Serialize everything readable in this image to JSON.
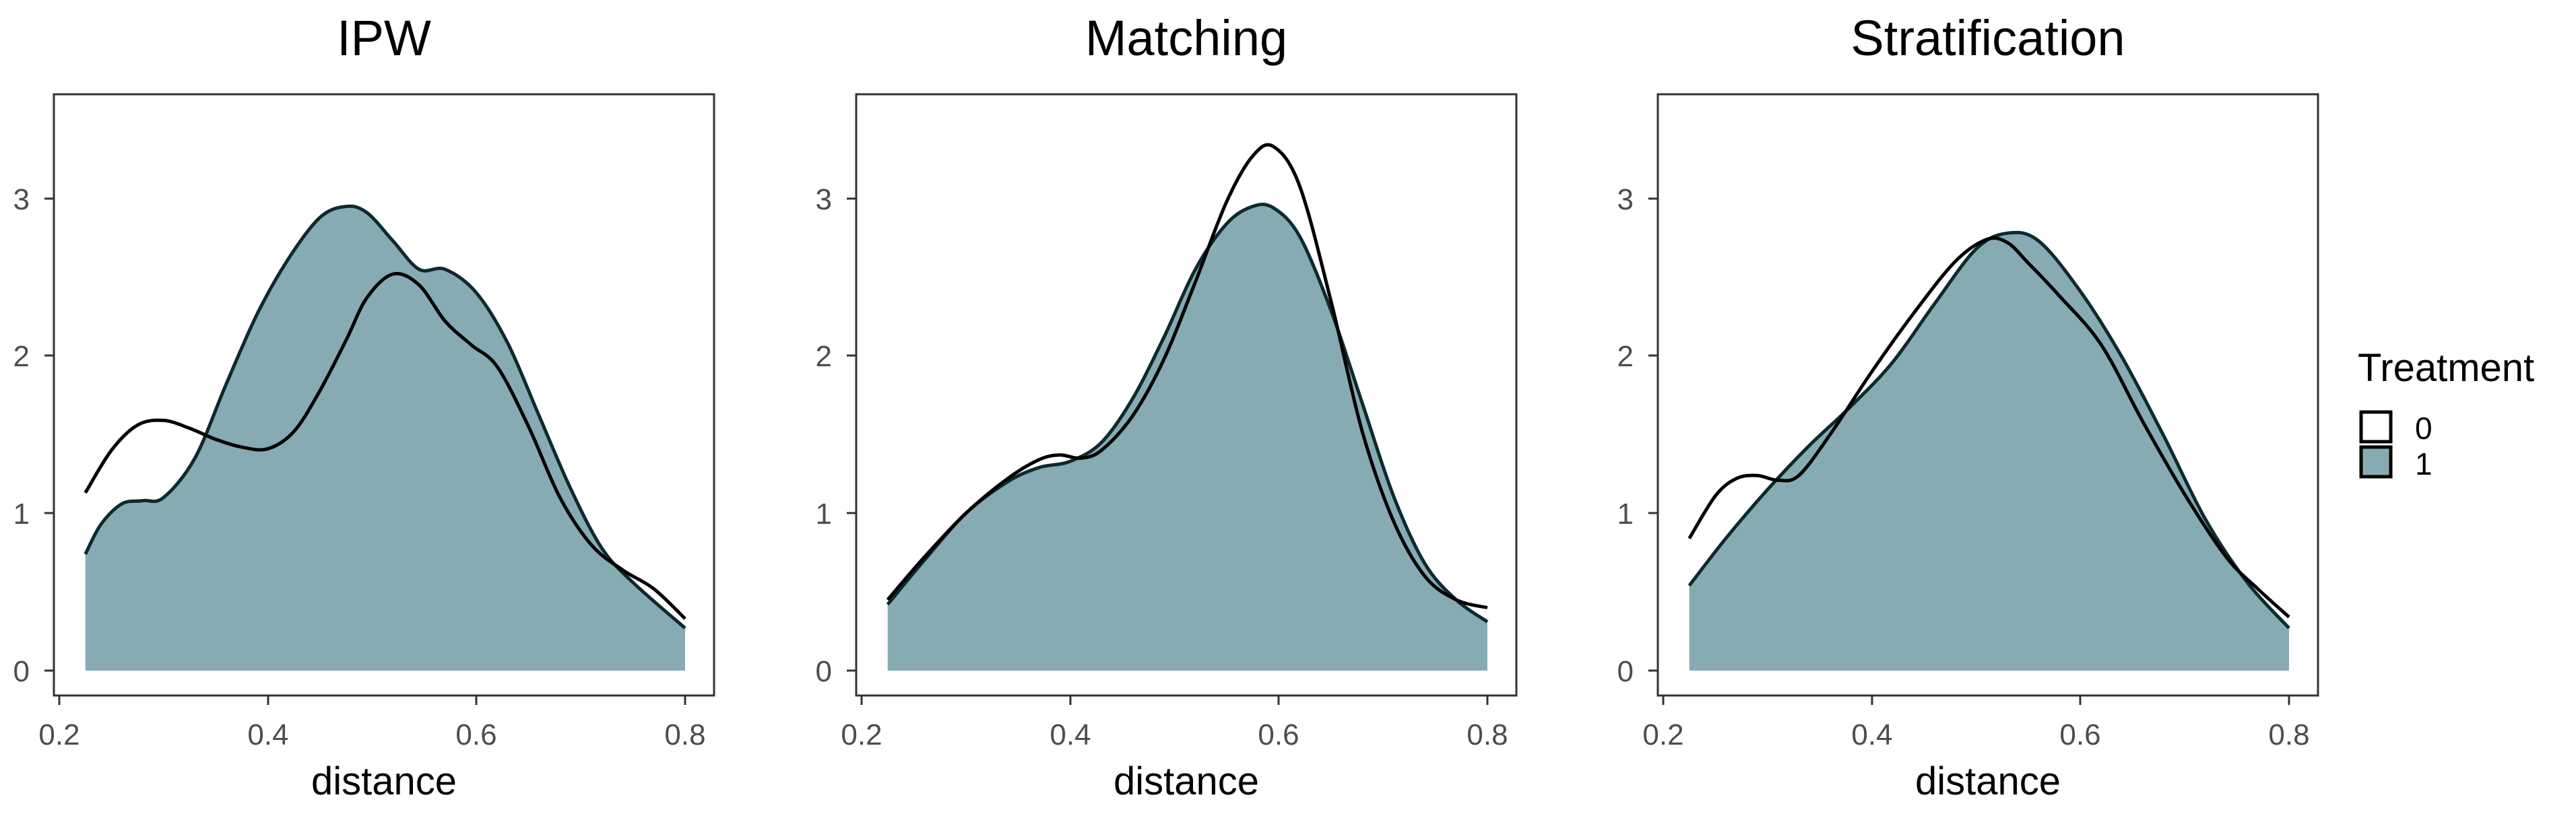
{
  "chart_data": [
    {
      "type": "area",
      "title": "IPW",
      "xlabel": "distance",
      "ylabel": "",
      "xlim": [
        0.2,
        0.8
      ],
      "ylim": [
        0,
        3.6
      ],
      "x_ticks": [
        "0.2",
        "0.4",
        "0.6",
        "0.8"
      ],
      "y_ticks": [
        "0",
        "1",
        "2",
        "3"
      ],
      "grid": false,
      "series": [
        {
          "name": "0",
          "fill": "none",
          "x": [
            0.225,
            0.25,
            0.275,
            0.3,
            0.325,
            0.35,
            0.375,
            0.4,
            0.425,
            0.45,
            0.475,
            0.495,
            0.52,
            0.545,
            0.57,
            0.595,
            0.62,
            0.65,
            0.68,
            0.71,
            0.74,
            0.77,
            0.8
          ],
          "y": [
            1.13,
            1.4,
            1.56,
            1.59,
            1.54,
            1.47,
            1.42,
            1.41,
            1.52,
            1.78,
            2.1,
            2.37,
            2.52,
            2.45,
            2.22,
            2.07,
            1.93,
            1.55,
            1.1,
            0.8,
            0.64,
            0.52,
            0.33
          ]
        },
        {
          "name": "1",
          "fill": "#87abb2",
          "x": [
            0.225,
            0.24,
            0.26,
            0.28,
            0.3,
            0.33,
            0.36,
            0.39,
            0.42,
            0.45,
            0.475,
            0.495,
            0.52,
            0.545,
            0.57,
            0.6,
            0.63,
            0.66,
            0.69,
            0.72,
            0.75,
            0.8
          ],
          "y": [
            0.74,
            0.93,
            1.06,
            1.08,
            1.1,
            1.35,
            1.82,
            2.27,
            2.62,
            2.88,
            2.95,
            2.91,
            2.73,
            2.55,
            2.55,
            2.4,
            2.08,
            1.62,
            1.16,
            0.78,
            0.56,
            0.27
          ]
        }
      ]
    },
    {
      "type": "area",
      "title": "Matching",
      "xlabel": "distance",
      "ylabel": "",
      "xlim": [
        0.2,
        0.8
      ],
      "ylim": [
        0,
        3.6
      ],
      "x_ticks": [
        "0.2",
        "0.4",
        "0.6",
        "0.8"
      ],
      "y_ticks": [
        "0",
        "1",
        "2",
        "3"
      ],
      "grid": false,
      "series": [
        {
          "name": "0",
          "fill": "none",
          "x": [
            0.225,
            0.26,
            0.3,
            0.34,
            0.37,
            0.39,
            0.41,
            0.43,
            0.46,
            0.49,
            0.52,
            0.55,
            0.575,
            0.595,
            0.62,
            0.65,
            0.68,
            0.71,
            0.74,
            0.77,
            0.8
          ],
          "y": [
            0.45,
            0.72,
            1.0,
            1.22,
            1.34,
            1.37,
            1.35,
            1.4,
            1.62,
            1.98,
            2.47,
            2.98,
            3.27,
            3.33,
            3.08,
            2.35,
            1.52,
            0.95,
            0.6,
            0.45,
            0.4
          ]
        },
        {
          "name": "1",
          "fill": "#87abb2",
          "x": [
            0.225,
            0.26,
            0.3,
            0.34,
            0.37,
            0.4,
            0.43,
            0.46,
            0.49,
            0.52,
            0.55,
            0.575,
            0.595,
            0.62,
            0.65,
            0.68,
            0.71,
            0.74,
            0.77,
            0.8
          ],
          "y": [
            0.42,
            0.7,
            1.0,
            1.2,
            1.29,
            1.33,
            1.45,
            1.73,
            2.12,
            2.55,
            2.84,
            2.95,
            2.94,
            2.76,
            2.29,
            1.7,
            1.11,
            0.68,
            0.45,
            0.31
          ]
        }
      ]
    },
    {
      "type": "area",
      "title": "Stratification",
      "xlabel": "distance",
      "ylabel": "",
      "xlim": [
        0.2,
        0.8
      ],
      "ylim": [
        0,
        3.6
      ],
      "x_ticks": [
        "0.2",
        "0.4",
        "0.6",
        "0.8"
      ],
      "y_ticks": [
        "0",
        "1",
        "2",
        "3"
      ],
      "grid": false,
      "series": [
        {
          "name": "0",
          "fill": "none",
          "x": [
            0.225,
            0.25,
            0.27,
            0.29,
            0.31,
            0.33,
            0.36,
            0.4,
            0.44,
            0.48,
            0.51,
            0.53,
            0.55,
            0.58,
            0.62,
            0.66,
            0.7,
            0.74,
            0.77,
            0.8
          ],
          "y": [
            0.84,
            1.11,
            1.22,
            1.24,
            1.21,
            1.24,
            1.5,
            1.9,
            2.27,
            2.6,
            2.74,
            2.72,
            2.59,
            2.38,
            2.07,
            1.58,
            1.12,
            0.72,
            0.52,
            0.34
          ]
        },
        {
          "name": "1",
          "fill": "#87abb2",
          "x": [
            0.225,
            0.26,
            0.3,
            0.34,
            0.38,
            0.42,
            0.46,
            0.5,
            0.53,
            0.56,
            0.6,
            0.64,
            0.68,
            0.72,
            0.76,
            0.8
          ],
          "y": [
            0.54,
            0.84,
            1.15,
            1.43,
            1.68,
            1.96,
            2.33,
            2.68,
            2.78,
            2.73,
            2.41,
            1.99,
            1.49,
            0.96,
            0.56,
            0.27
          ]
        }
      ]
    }
  ],
  "legend": {
    "title": "Treatment",
    "placement": "right",
    "items": [
      {
        "label": "0",
        "fill": "#ffffff"
      },
      {
        "label": "1",
        "fill": "#87abb2"
      }
    ]
  },
  "colors": {
    "fill_1": "#87abb2",
    "line": "#000000",
    "panel_border": "#333333",
    "tick_text": "#4d4d4d"
  }
}
